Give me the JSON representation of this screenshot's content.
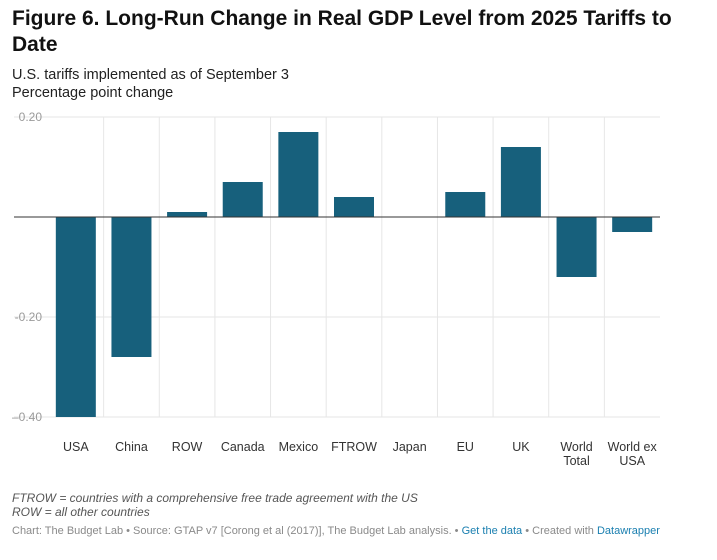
{
  "title": "Figure 6. Long-Run Change in Real GDP Level from 2025 Tariffs to Date",
  "subtitle_lines": [
    "U.S. tariffs implemented as of September 3",
    "Percentage point change"
  ],
  "notes": [
    "FTROW = countries with a comprehensive free trade agreement with the US",
    "ROW = all other countries"
  ],
  "footer": {
    "source": "Chart: The Budget Lab • Source: GTAP v7 [Corong et al (2017)], The Budget Lab analysis. •",
    "get_data": "Get the data",
    "created": "• Created with",
    "tool": "Datawrapper"
  },
  "colors": {
    "bar": "#17607c",
    "grid": "#e6e6e6",
    "zero": "#333333"
  },
  "chart_data": {
    "type": "bar",
    "categories": [
      [
        "USA"
      ],
      [
        "China"
      ],
      [
        "ROW"
      ],
      [
        "Canada"
      ],
      [
        "Mexico"
      ],
      [
        "FTROW"
      ],
      [
        "Japan"
      ],
      [
        "EU"
      ],
      [
        "UK"
      ],
      [
        "World",
        "Total"
      ],
      [
        "World ex",
        "USA"
      ]
    ],
    "values": [
      -0.4,
      -0.28,
      0.01,
      0.07,
      0.17,
      0.04,
      0.0,
      0.05,
      0.14,
      -0.12,
      -0.03
    ],
    "ylim": [
      -0.4,
      0.2
    ],
    "yticks": [
      0.2,
      -0.2,
      -0.4
    ],
    "ytick_labels": [
      "0.20",
      "-0.20",
      "–0.40"
    ],
    "grid": true
  }
}
